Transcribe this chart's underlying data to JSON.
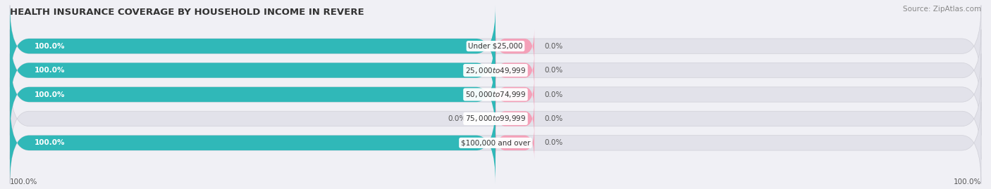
{
  "title": "HEALTH INSURANCE COVERAGE BY HOUSEHOLD INCOME IN REVERE",
  "source": "Source: ZipAtlas.com",
  "categories": [
    "Under $25,000",
    "$25,000 to $49,999",
    "$50,000 to $74,999",
    "$75,000 to $99,999",
    "$100,000 and over"
  ],
  "with_coverage": [
    100.0,
    100.0,
    100.0,
    0.0,
    100.0
  ],
  "without_coverage": [
    0.0,
    0.0,
    0.0,
    0.0,
    0.0
  ],
  "color_with": "#30b8b8",
  "color_without": "#f4a0b8",
  "bg_color": "#f0f0f5",
  "bar_bg_color": "#e2e2ea",
  "title_fontsize": 9.5,
  "source_fontsize": 7.5,
  "pct_fontsize": 7.5,
  "label_fontsize": 7.5,
  "legend_fontsize": 8,
  "bar_height": 0.62,
  "axis_label_left": "100.0%",
  "axis_label_right": "100.0%"
}
